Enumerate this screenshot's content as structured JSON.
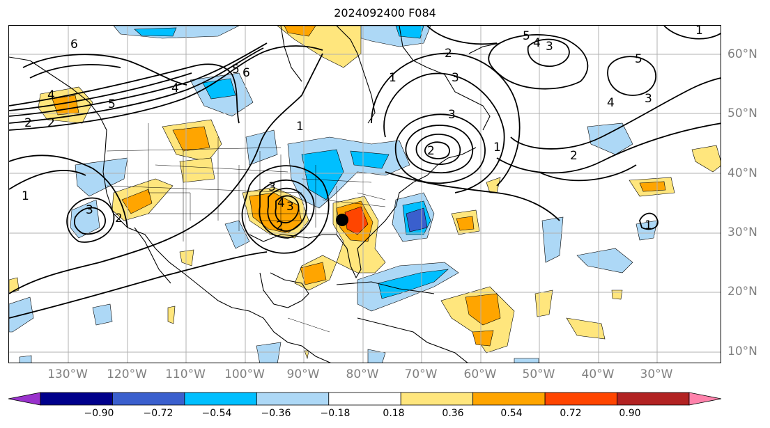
{
  "title": "2024092400 F084",
  "lat_labels": [
    "60°N",
    "50°N",
    "40°N",
    "30°N",
    "20°N",
    "10°N"
  ],
  "lon_labels": [
    "130°W",
    "120°W",
    "110°W",
    "100°W",
    "90°W",
    "80°W",
    "70°W",
    "60°W",
    "50°W",
    "40°W",
    "30°W"
  ],
  "contour_labels": [
    "6",
    "5",
    "4",
    "3",
    "2",
    "1",
    "6",
    "5",
    "4",
    "2",
    "1",
    "3",
    "4",
    "3",
    "2",
    "1",
    "2",
    "5",
    "4",
    "3",
    "4",
    "5",
    "3",
    "2",
    "3",
    "2",
    "1",
    "1",
    "2",
    "3",
    "1"
  ],
  "colorbar": {
    "ticks": [
      "−0.90",
      "−0.72",
      "−0.54",
      "−0.36",
      "−0.18",
      "0.18",
      "0.36",
      "0.54",
      "0.72",
      "0.90"
    ],
    "colors": [
      "#9932cc",
      "#00008b",
      "#3a5fcd",
      "#00bfff",
      "#add8f6",
      "#ffffff",
      "#ffe67d",
      "#ffa500",
      "#ff4500",
      "#b22222",
      "#ff82ab"
    ]
  }
}
